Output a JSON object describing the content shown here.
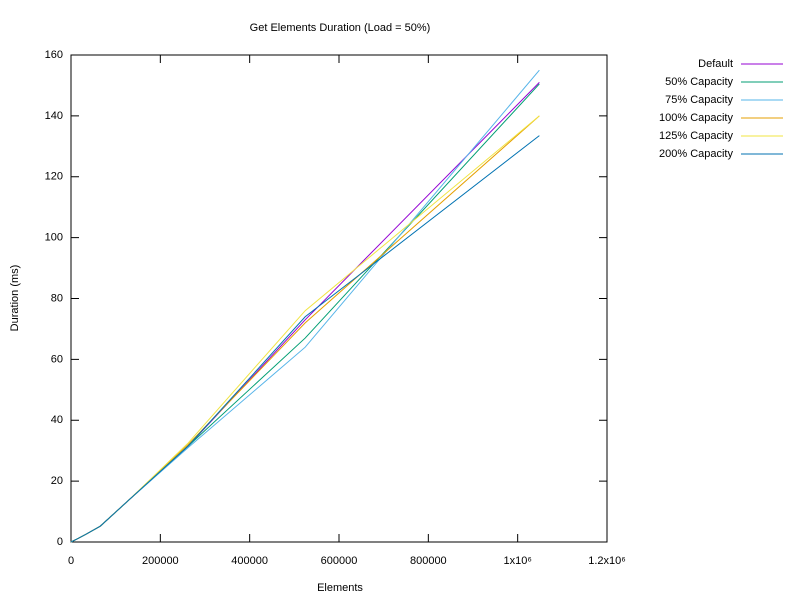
{
  "chart_data": {
    "type": "line",
    "title": "Get Elements Duration (Load = 50%)",
    "xlabel": "Elements",
    "ylabel": "Duration (ms)",
    "x": [
      0,
      16384,
      32768,
      65536,
      131072,
      262144,
      524288,
      1048576
    ],
    "series": [
      {
        "name": "Default",
        "color": "#9400d3",
        "values": [
          0,
          1.2,
          2.5,
          5.2,
          14,
          31.5,
          73,
          151
        ]
      },
      {
        "name": "50% Capacity",
        "color": "#009e73",
        "values": [
          0,
          1.2,
          2.5,
          5.2,
          14,
          31.5,
          67,
          150.5
        ]
      },
      {
        "name": "75% Capacity",
        "color": "#56b4e9",
        "values": [
          0,
          1.2,
          2.5,
          5.2,
          14,
          31,
          64,
          155
        ]
      },
      {
        "name": "100% Capacity",
        "color": "#e69f00",
        "values": [
          0,
          1.2,
          2.5,
          5.2,
          14,
          32,
          72,
          140
        ]
      },
      {
        "name": "125% Capacity",
        "color": "#f0e442",
        "values": [
          0,
          1.2,
          2.5,
          5.2,
          14,
          32.5,
          76,
          140
        ]
      },
      {
        "name": "200% Capacity",
        "color": "#0072b2",
        "values": [
          0,
          1.2,
          2.5,
          5.2,
          14,
          31.5,
          74,
          133.5
        ]
      }
    ],
    "xlim": [
      0,
      1200000
    ],
    "xticks": [
      0,
      200000,
      400000,
      600000,
      800000,
      {
        "value": 1000000,
        "label": "1x10⁶"
      },
      {
        "value": 1200000,
        "label": "1.2x10⁶"
      }
    ],
    "ylim": [
      0,
      160
    ],
    "yticks": [
      0,
      20,
      40,
      60,
      80,
      100,
      120,
      140,
      160
    ],
    "legend": "outside-right"
  }
}
